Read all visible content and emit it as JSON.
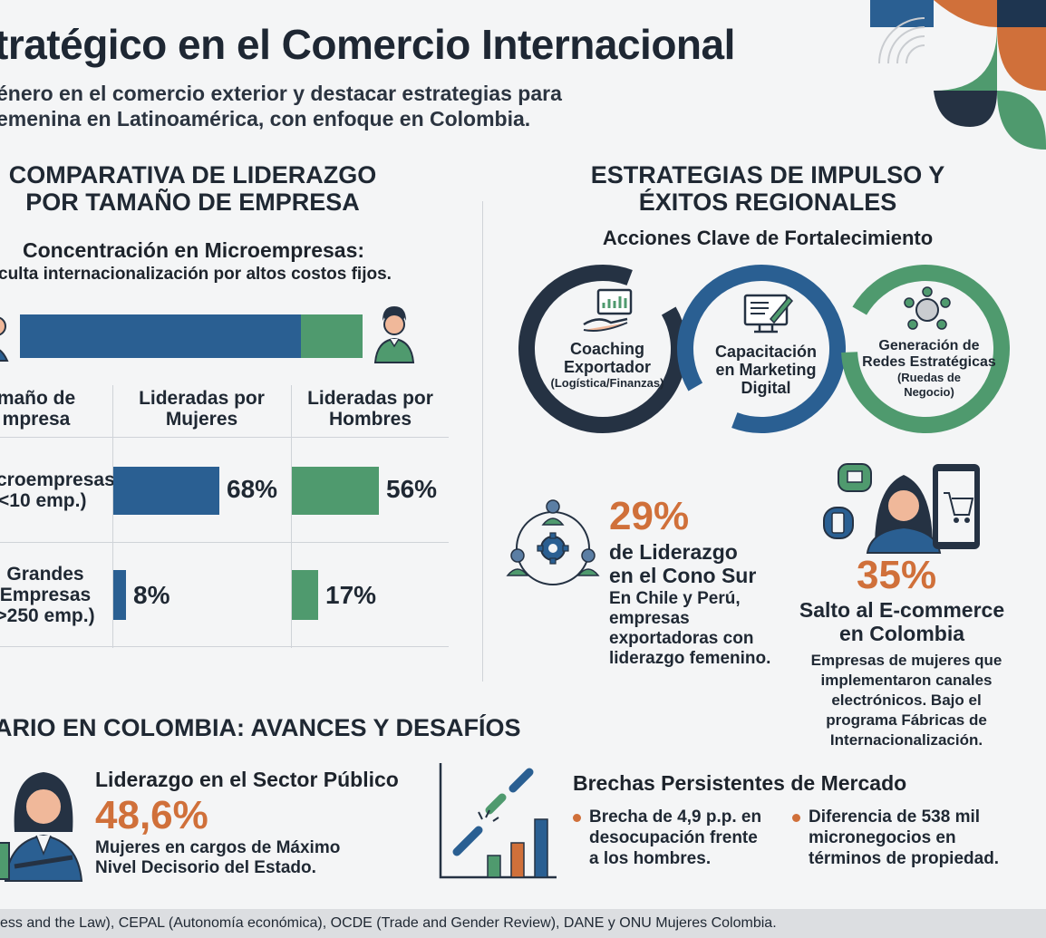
{
  "header": {
    "title": "tratégico en el Comercio Internacional",
    "subtitle_line1": "énero en el comercio exterior y destacar estrategias para",
    "subtitle_line2": "emenina en Latinoamérica, con enfoque en Colombia."
  },
  "left_section": {
    "heading_line1": "COMPARATIVA DE LIDERAZGO",
    "heading_line2": "POR TAMAÑO DE EMPRESA",
    "concentration_title": "Concentración en Microempresas:",
    "concentration_text": "culta internacionalización por altos costos fijos.",
    "concentration_bar": {
      "women_fraction": 0.82,
      "men_fraction": 0.18
    },
    "table": {
      "col_size_line1": "maño de",
      "col_size_line2": "mpresa",
      "col_women_line1": "Lideradas por",
      "col_women_line2": "Mujeres",
      "col_men_line1": "Lideradas por",
      "col_men_line2": "Hombres",
      "rows": [
        {
          "size_line1": "croempresas",
          "size_line2": "<10 emp.)",
          "size_line3": "",
          "women": "68%",
          "women_value": 68,
          "men": "56%",
          "men_value": 56
        },
        {
          "size_line1": "Grandes",
          "size_line2": "Empresas",
          "size_line3": ">250 emp.)",
          "women": "8%",
          "women_value": 8,
          "men": "17%",
          "men_value": 17
        }
      ]
    }
  },
  "right_section": {
    "heading_line1": "ESTRATEGIAS DE IMPULSO Y",
    "heading_line2": "ÉXITOS REGIONALES",
    "actions_title": "Acciones Clave de Fortalecimiento",
    "rings": [
      {
        "line1": "Coaching",
        "line2": "Exportador",
        "sub": "(Logística/Finanzas)",
        "color": "#253243"
      },
      {
        "line1": "Capacitación",
        "line2": "en Marketing",
        "line3": "Digital",
        "color": "#2a5f92"
      },
      {
        "line1": "Generación de",
        "line2": "Redes Estratégicas",
        "sub1": "(Ruedas de",
        "sub2": "Negocio)",
        "color": "#4f9a6e"
      }
    ],
    "stat_cono_sur": {
      "value": "29%",
      "title_line1": "de Liderazgo",
      "title_line2": "en el Cono Sur",
      "body_line1": "En Chile y Perú,",
      "body_line2": "empresas",
      "body_line3": "exportadoras con",
      "body_line4": "liderazgo femenino."
    },
    "stat_ecommerce": {
      "value": "35%",
      "title_line1": "Salto al E-commerce",
      "title_line2": "en Colombia",
      "body_line1": "Empresas de mujeres que",
      "body_line2": "implementaron canales",
      "body_line3": "electrónicos. Bajo el",
      "body_line4": "programa Fábricas de",
      "body_line5": "Internacionalización."
    }
  },
  "bottom_section": {
    "heading": "ARIO EN COLOMBIA: AVANCES Y DESAFÍOS",
    "public_title": "Liderazgo en el Sector Público",
    "public_value": "48,6%",
    "public_body_line1": "Mujeres en cargos de Máximo",
    "public_body_line2": "Nivel Decisorio del Estado.",
    "gaps_title": "Brechas Persistentes de Mercado",
    "gap1_line1": "Brecha de 4,9 p.p. en",
    "gap1_line2": "desocupación frente",
    "gap1_line3": "a los hombres.",
    "gap2_line1": "Diferencia de 538 mil",
    "gap2_line2": "micronegocios en",
    "gap2_line3": "términos de propiedad."
  },
  "footer": {
    "sources": "ess and the Law), CEPAL (Autonomía económica), OCDE (Trade and Gender Review), DANE  y ONU Mujeres Colombia."
  },
  "colors": {
    "blue": "#2a5f92",
    "green": "#4f9a6e",
    "orange": "#d0703a",
    "navy": "#253243"
  }
}
